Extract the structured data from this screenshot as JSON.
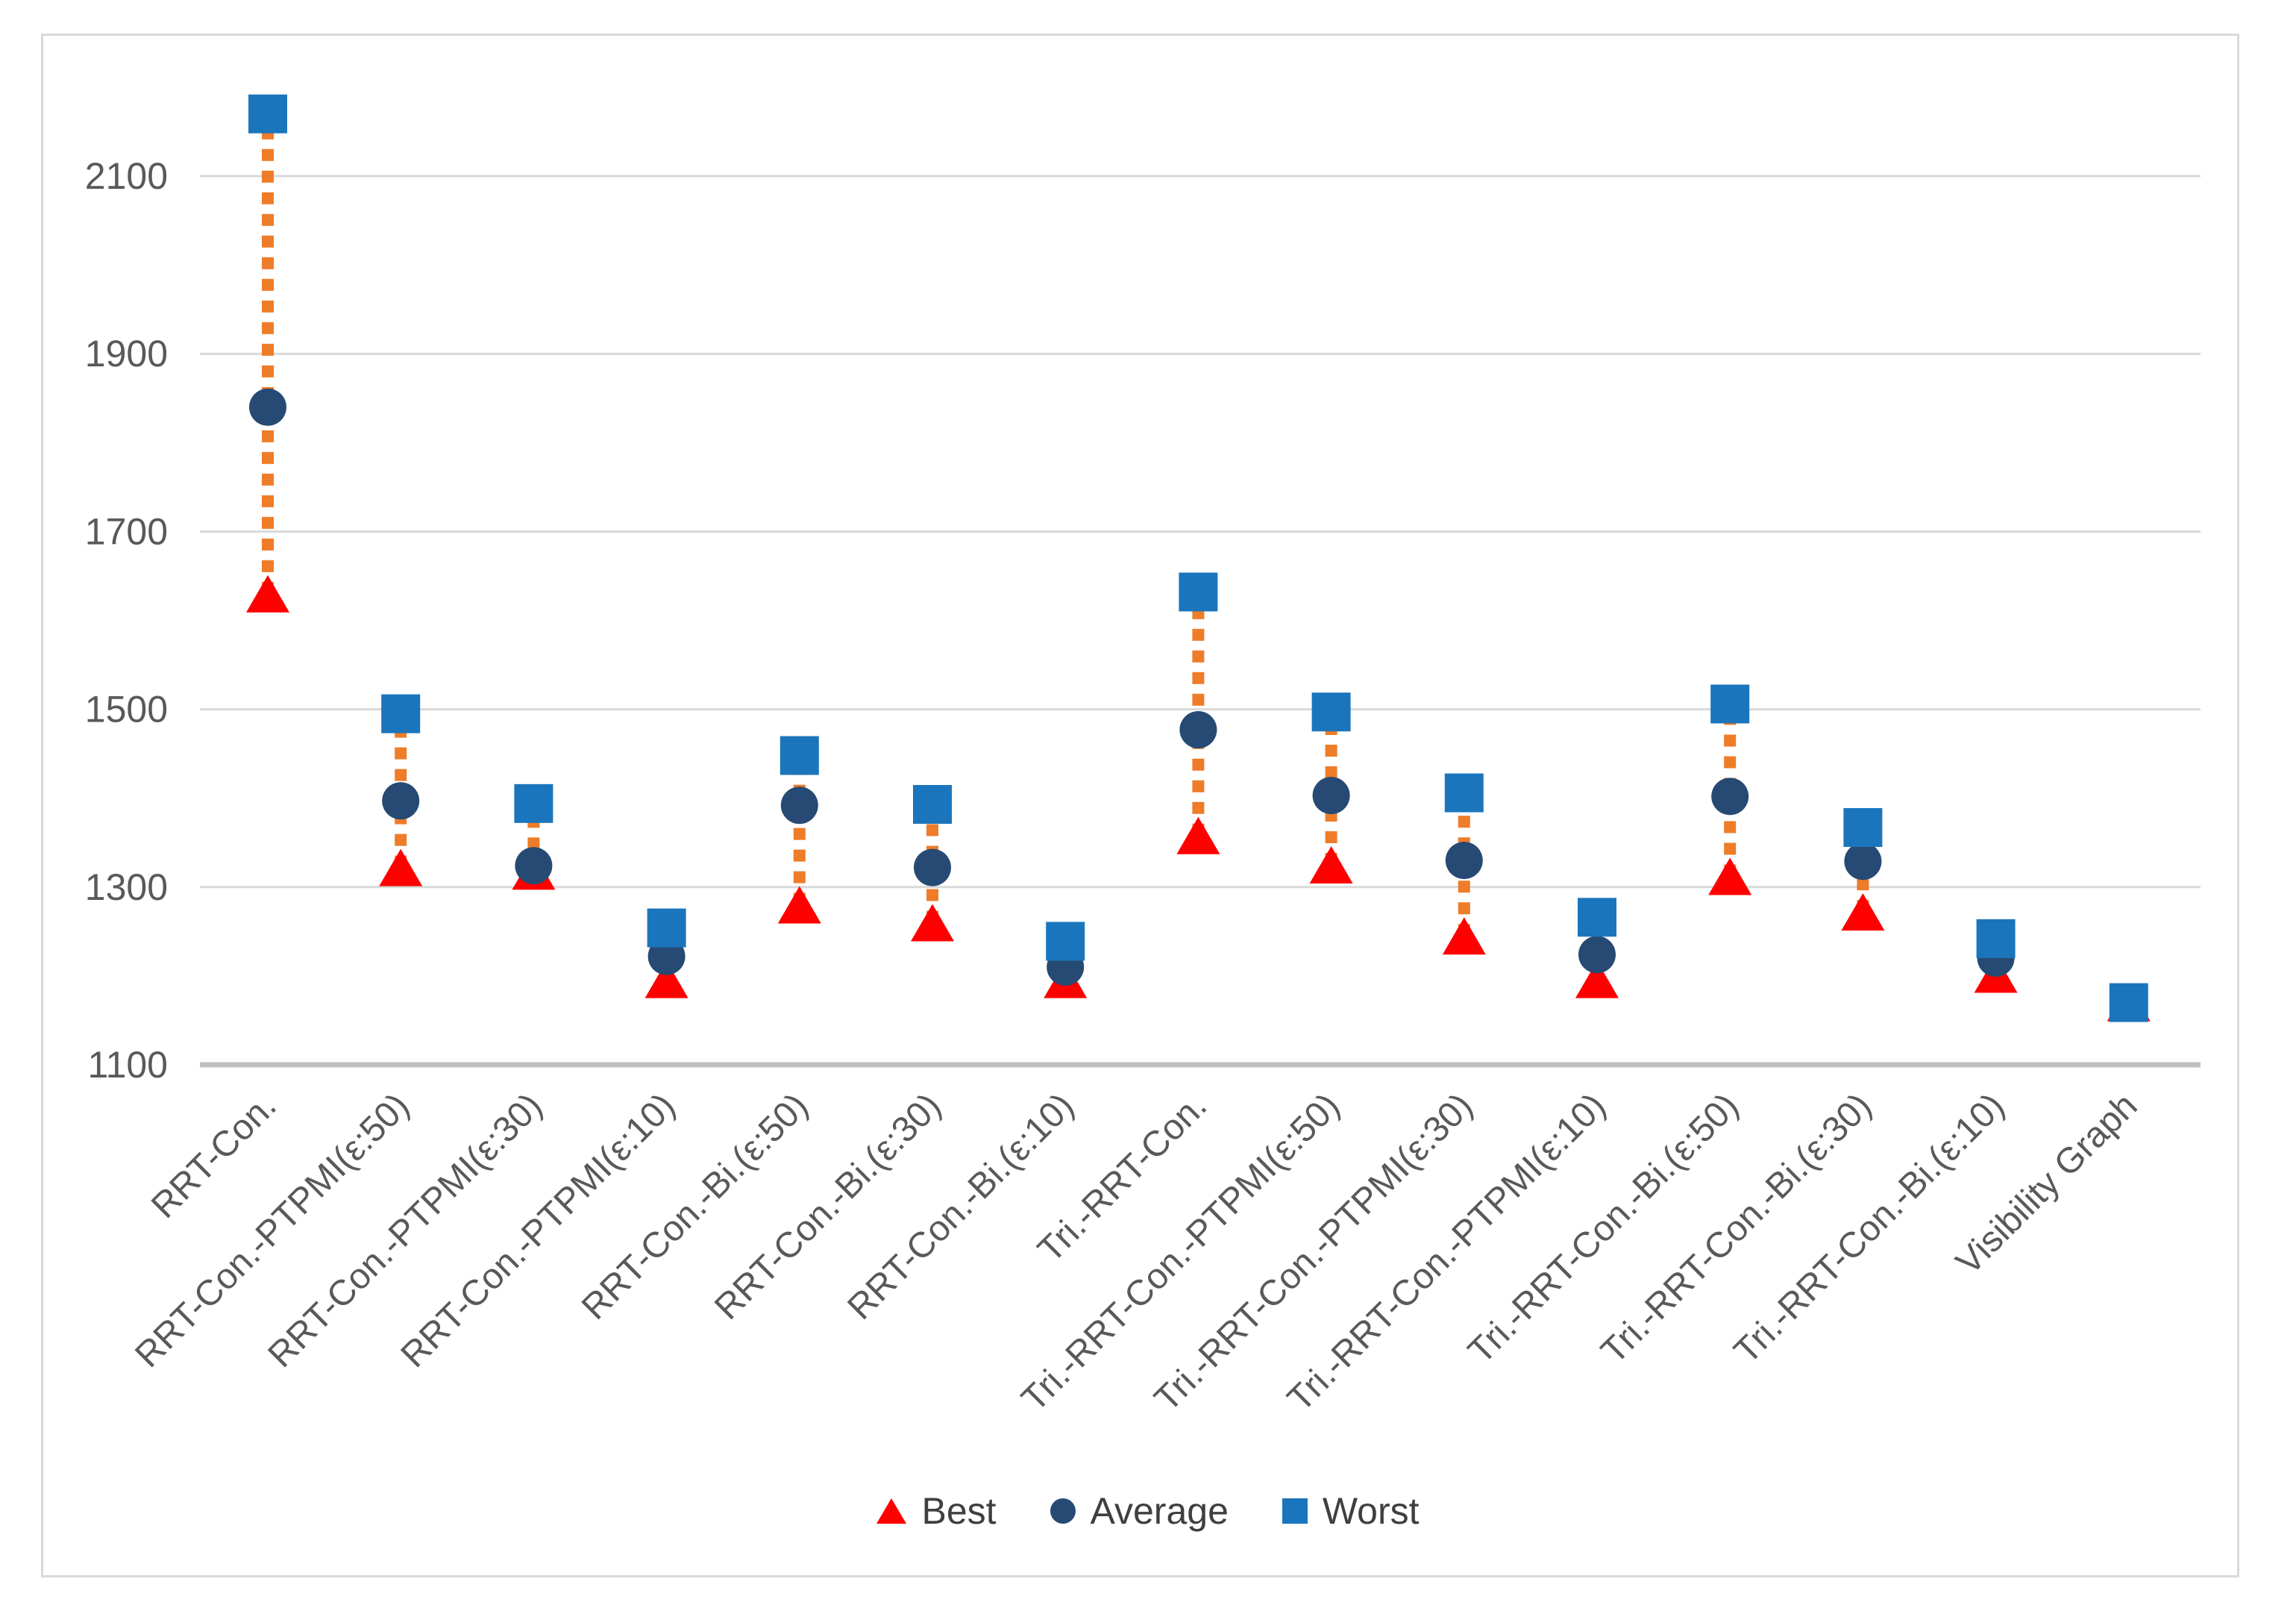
{
  "figure": {
    "background": "#FFFFFF",
    "border_color": "#D9D9D9"
  },
  "chart_data": {
    "type": "scatter",
    "subtype": "high-low-close comparison",
    "title": "",
    "xlabel": "",
    "ylabel": "",
    "categories": [
      "RRT-Con.",
      "RRT-Con.-PTPMI(ε:50)",
      "RRT-Con.-PTPMI(ε:30)",
      "RRT-Con.-PTPMI(ε:10)",
      "RRT-Con.-Bi.(ε:50)",
      "RRT-Con.-Bi.(ε:30)",
      "RRT-Con.-Bi.(ε:10)",
      "Tri.-RRT-Con.",
      "Tri.-RRT-Con.-PTPMI(ε:50)",
      "Tri.-RRT-Con.-PTPMI(ε:30)",
      "Tri.-RRT-Con.-PTPMI(ε:10)",
      "Tri.-RRT-Con.-Bi.(ε:50)",
      "Tri.-RRT-Con.-Bi.(ε:30)",
      "Tri.-RRT-Con.-Bi.(ε:10)",
      "Visibility Graph"
    ],
    "series": [
      {
        "name": "Best",
        "marker": "triangle",
        "color": "#FF0000",
        "values": [
          1630,
          1322,
          1318,
          1196,
          1280,
          1260,
          1196,
          1358,
          1325,
          1245,
          1196,
          1312,
          1272,
          1202,
          1170
        ]
      },
      {
        "name": "Average",
        "marker": "circle",
        "color": "#264A73",
        "values": [
          1840,
          1397,
          1324,
          1222,
          1392,
          1322,
          1210,
          1477,
          1403,
          1330,
          1224,
          1402,
          1329,
          1220,
          1170
        ]
      },
      {
        "name": "Worst",
        "marker": "square",
        "color": "#1B75BC",
        "values": [
          2170,
          1495,
          1394,
          1254,
          1448,
          1393,
          1239,
          1632,
          1497,
          1406,
          1266,
          1506,
          1367,
          1242,
          1170
        ]
      }
    ],
    "hi_lo_line": {
      "color": "#EE7C28",
      "style": "dotted"
    },
    "y_axis": {
      "min": 1100,
      "max": 2220,
      "tick_step": 200,
      "ticks": [
        1100,
        1300,
        1500,
        1700,
        1900,
        2100
      ],
      "tick_labels": [
        "1100",
        "1300",
        "1500",
        "1700",
        "1900",
        "2100"
      ],
      "label_color": "#595959",
      "gridline_color": "#D9D9D9",
      "axis_line_color": "#BFBFBF"
    },
    "x_axis": {
      "label_color": "#595959",
      "label_rotation_deg": -45
    },
    "grid": true,
    "legend": {
      "position": "bottom",
      "entries": [
        "Best",
        "Average",
        "Worst"
      ]
    }
  }
}
